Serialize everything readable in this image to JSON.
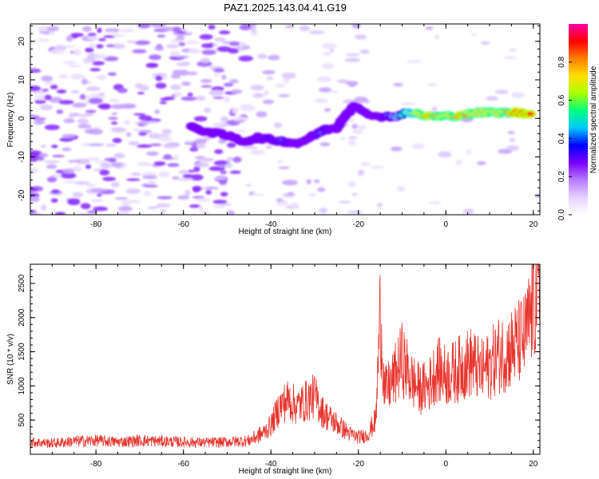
{
  "title": "PAZ1.2025.143.04.41.G19",
  "colors": {
    "snr_line": "#e8332c",
    "frame": "#000000",
    "colormap": [
      "#ffffff",
      "#e6d2ff",
      "#b77bff",
      "#7a00ff",
      "#0000ff",
      "#00c8ff",
      "#00ff80",
      "#aaff00",
      "#ffe000",
      "#ff7f00",
      "#ff0000",
      "#ff00aa"
    ]
  },
  "chart_data": [
    {
      "type": "heatmap",
      "xlabel": "Height of straight line (km)",
      "ylabel": "Frequency (Hz)",
      "xlim": [
        -95,
        21.5
      ],
      "ylim": [
        -25,
        24.5
      ],
      "xticks": [
        -80,
        -60,
        -40,
        -20,
        0,
        20
      ],
      "xtick_labels": [
        "-80",
        "-60",
        "-40",
        "-20",
        "0",
        "20"
      ],
      "yticks": [
        -20,
        -10,
        0,
        10,
        20
      ],
      "ytick_labels": [
        "-20",
        "-10",
        "0",
        "10",
        "20"
      ],
      "colorbar": {
        "label": "Normalized spectral amplitude",
        "range": [
          0,
          1
        ],
        "ticks": [
          0.0,
          0.2,
          0.4,
          0.6,
          0.8
        ],
        "tick_labels": [
          "0.0",
          "0.2",
          "0.4",
          "0.6",
          "0.8"
        ]
      },
      "ridge": [
        {
          "x": -58,
          "y": -2.5,
          "amp": 0.35
        },
        {
          "x": -54,
          "y": -3.5,
          "amp": 0.4
        },
        {
          "x": -50,
          "y": -4.5,
          "amp": 0.3
        },
        {
          "x": -46,
          "y": -6,
          "amp": 0.25
        },
        {
          "x": -43,
          "y": -5,
          "amp": 0.3
        },
        {
          "x": -40,
          "y": -5.5,
          "amp": 0.5
        },
        {
          "x": -37,
          "y": -6,
          "amp": 0.45
        },
        {
          "x": -34,
          "y": -6.5,
          "amp": 0.4
        },
        {
          "x": -31,
          "y": -5,
          "amp": 0.35
        },
        {
          "x": -28,
          "y": -3,
          "amp": 0.5
        },
        {
          "x": -25,
          "y": -2.5,
          "amp": 0.4
        },
        {
          "x": -23,
          "y": 1,
          "amp": 0.35
        },
        {
          "x": -21,
          "y": 3,
          "amp": 0.25
        },
        {
          "x": -16,
          "y": 0.5,
          "amp": 0.3
        },
        {
          "x": -12,
          "y": 0.5,
          "amp": 0.55
        },
        {
          "x": -8,
          "y": 1.5,
          "amp": 0.75
        },
        {
          "x": -4,
          "y": 0.5,
          "amp": 0.9
        },
        {
          "x": 0,
          "y": 0.5,
          "amp": 0.85
        },
        {
          "x": 4,
          "y": 1,
          "amp": 0.9
        },
        {
          "x": 8,
          "y": 1.5,
          "amp": 0.8
        },
        {
          "x": 12,
          "y": 1.5,
          "amp": 0.85
        },
        {
          "x": 16,
          "y": 1.5,
          "amp": 0.9
        },
        {
          "x": 20,
          "y": 1,
          "amp": 0.95
        }
      ]
    },
    {
      "type": "line",
      "xlabel": "Height of straight line (km)",
      "ylabel": "SNR (10 * v/v)",
      "xlim": [
        -95,
        21.5
      ],
      "ylim": [
        0,
        2780
      ],
      "xticks": [
        -80,
        -60,
        -40,
        -20,
        0,
        20
      ],
      "xtick_labels": [
        "-80",
        "-60",
        "-40",
        "-20",
        "0",
        "20"
      ],
      "yticks": [
        500,
        1000,
        1500,
        2000,
        2500
      ],
      "ytick_labels": [
        "500",
        "1000",
        "1500",
        "2000",
        "2500"
      ],
      "series": [
        {
          "x": [
            -95,
            -90,
            -85,
            -80,
            -75,
            -70,
            -65,
            -60,
            -55,
            -50,
            -45,
            -42,
            -40,
            -38,
            -36,
            -34,
            -32,
            -30,
            -28,
            -26,
            -24,
            -22,
            -20,
            -18,
            -16,
            -15,
            -14,
            -12,
            -10,
            -8,
            -6,
            -4,
            -2,
            0,
            2,
            4,
            6,
            8,
            10,
            12,
            14,
            16,
            18,
            20,
            21.5
          ],
          "y": [
            180,
            160,
            190,
            200,
            180,
            200,
            190,
            180,
            170,
            180,
            200,
            300,
            420,
            700,
            800,
            700,
            780,
            850,
            600,
            500,
            400,
            300,
            250,
            280,
            500,
            2100,
            900,
            1100,
            1400,
            1100,
            950,
            1000,
            1250,
            1150,
            1200,
            1300,
            1350,
            1200,
            1300,
            1450,
            1500,
            1600,
            1700,
            2150,
            2450
          ]
        }
      ]
    }
  ]
}
